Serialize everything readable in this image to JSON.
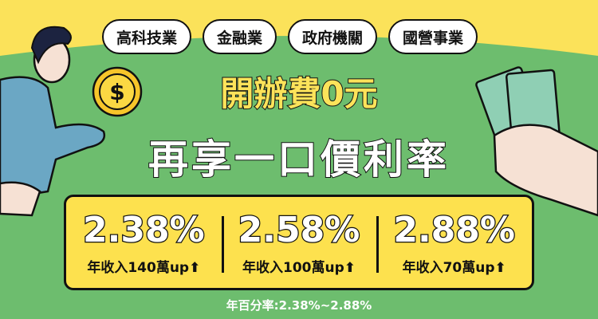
{
  "tags": [
    "高科技業",
    "金融業",
    "政府機關",
    "國營事業"
  ],
  "headline": {
    "line1": "開辦費0元",
    "line2": "再享一口價利率"
  },
  "rates": [
    {
      "rate": "2.38%",
      "condition": "年收入140萬up⬆"
    },
    {
      "rate": "2.58%",
      "condition": "年收入100萬up⬆"
    },
    {
      "rate": "2.88%",
      "condition": "年收入70萬up⬆"
    }
  ],
  "apr": "年百分率:2.38%~2.88%",
  "coin_symbol": "$",
  "colors": {
    "yellow": "#fbe25a",
    "green": "#6dbd6e"
  }
}
